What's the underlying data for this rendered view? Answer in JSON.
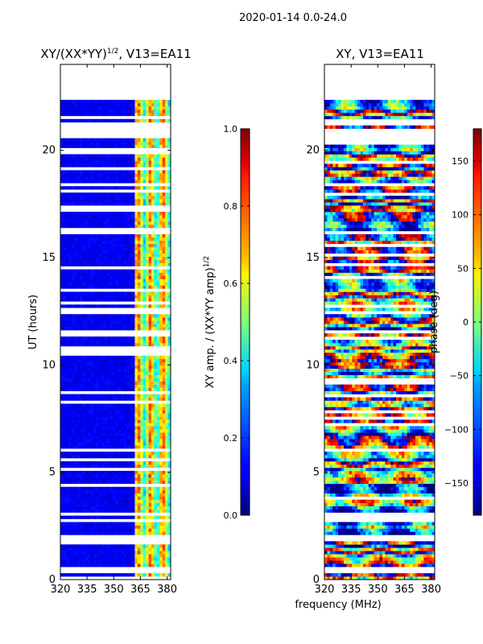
{
  "figure_title": "2020-01-14 0.0-24.0",
  "shared_xlabel": "frequency (MHz)",
  "chart_data": [
    {
      "type": "heatmap",
      "title": "XY/(XX*YY)^{1/2}, V13=EA11",
      "title_main": "XY/(XX*YY)",
      "title_sup": "1/2",
      "title_tail": ", V13=EA11",
      "xlabel": "frequency (MHz)",
      "ylabel": "UT (hours)",
      "xlim": [
        320,
        382
      ],
      "ylim": [
        0,
        24
      ],
      "xticks": [
        320,
        335,
        350,
        365,
        380
      ],
      "yticks": [
        0,
        5,
        10,
        15,
        20
      ],
      "colormap": "jet",
      "colorbar": {
        "label": "XY amp. / (XX*YY amp)^{1/2}",
        "label_main": "XY amp. / (XX*YY amp)",
        "label_sup": "1/2",
        "range": [
          0.0,
          1.0
        ],
        "ticks": [
          "0.0",
          "0.2",
          "0.4",
          "0.6",
          "0.8",
          "1.0"
        ]
      },
      "data_note": "low normalized amplitude (~0.1) across most of the band; elevated values (~0.4-0.7) in channels near 362-382 MHz; no data above ~22.3 UT and in blank time gaps"
    },
    {
      "type": "heatmap",
      "title": "XY, V13=EA11",
      "xlabel": "frequency (MHz)",
      "ylabel": "",
      "xlim": [
        320,
        382
      ],
      "ylim": [
        0,
        24
      ],
      "xticks": [
        320,
        335,
        350,
        365,
        380
      ],
      "yticks": [
        0,
        5,
        10,
        15,
        20
      ],
      "colormap": "jet",
      "colorbar": {
        "label": "phase (deg)",
        "range": [
          -180,
          180
        ],
        "ticks": [
          "-150",
          "-100",
          "-50",
          "0",
          "50",
          "100",
          "150"
        ]
      },
      "data_note": "XY phase spans the full -180 to 180 deg range with band-like structure in time; no data above ~22.3 UT"
    }
  ]
}
